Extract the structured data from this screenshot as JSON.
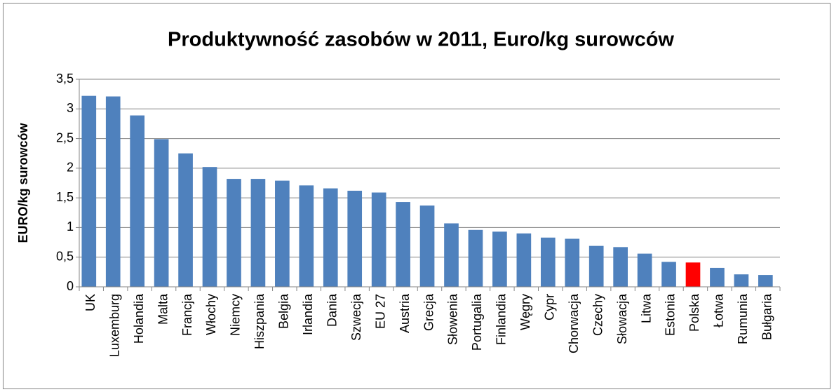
{
  "chart_data": {
    "type": "bar",
    "title": "Produktywność zasobów w 2011, Euro/kg surowców",
    "y_label": "EURO/kg surowców",
    "categories": [
      "UK",
      "Luxemburg",
      "Holandia",
      "Malta",
      "Francja",
      "Włochy",
      "Niemcy",
      "Hiszpania",
      "Belgia",
      "Irlandia",
      "Dania",
      "Szwecja",
      "EU 27",
      "Austria",
      "Grecja",
      "Słowenia",
      "Portugalia",
      "Finlandia",
      "Węgry",
      "Cypr",
      "Chorwacja",
      "Czechy",
      "Słowacja",
      "Litwa",
      "Estonia",
      "Polska",
      "Łotwa",
      "Rumunia",
      "Bułgaria"
    ],
    "values": [
      3.22,
      3.21,
      2.89,
      2.49,
      2.25,
      2.02,
      1.82,
      1.82,
      1.79,
      1.71,
      1.66,
      1.62,
      1.59,
      1.43,
      1.37,
      1.07,
      0.96,
      0.93,
      0.9,
      0.83,
      0.81,
      0.69,
      0.67,
      0.56,
      0.42,
      0.41,
      0.32,
      0.21,
      0.2
    ],
    "colors": [
      "#4f81bd",
      "#4f81bd",
      "#4f81bd",
      "#4f81bd",
      "#4f81bd",
      "#4f81bd",
      "#4f81bd",
      "#4f81bd",
      "#4f81bd",
      "#4f81bd",
      "#4f81bd",
      "#4f81bd",
      "#4f81bd",
      "#4f81bd",
      "#4f81bd",
      "#4f81bd",
      "#4f81bd",
      "#4f81bd",
      "#4f81bd",
      "#4f81bd",
      "#4f81bd",
      "#4f81bd",
      "#4f81bd",
      "#4f81bd",
      "#4f81bd",
      "#ff0000",
      "#4f81bd",
      "#4f81bd",
      "#4f81bd"
    ],
    "ylim": [
      0,
      3.5
    ],
    "yticks": [
      0,
      {
        "value": 0.5,
        "label": "0,5"
      },
      1,
      {
        "value": 1.5,
        "label": "1,5"
      },
      2,
      {
        "value": 2.5,
        "label": "2,5"
      },
      3,
      {
        "value": 3.5,
        "label": "3,5"
      }
    ],
    "grid": true
  }
}
